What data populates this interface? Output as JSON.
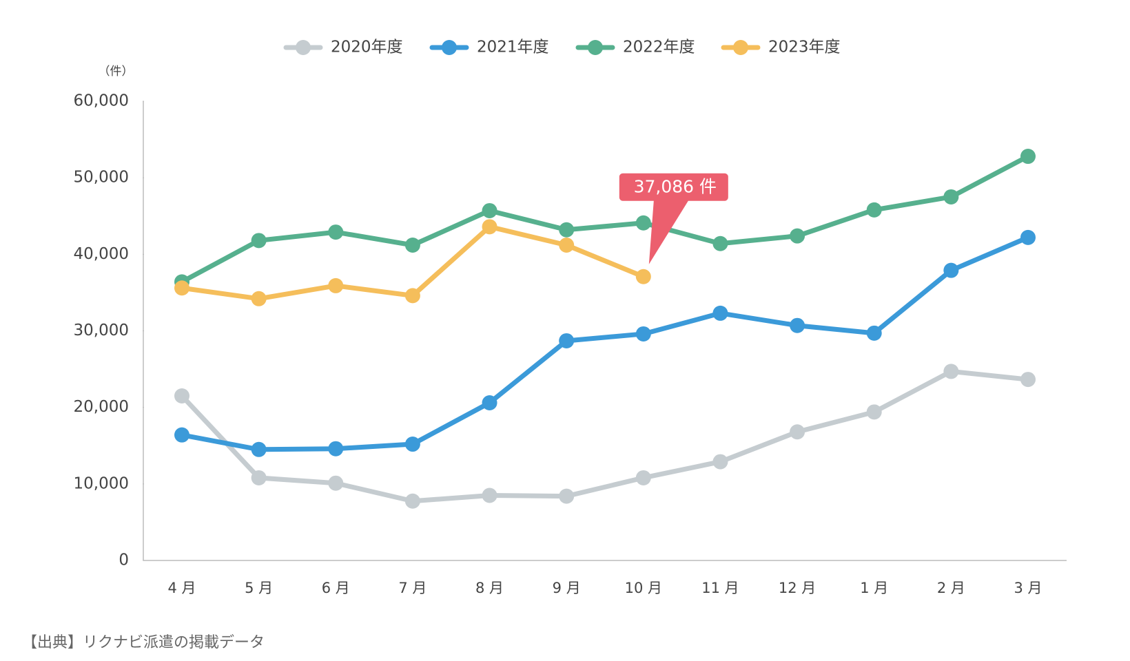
{
  "chart_data": {
    "type": "line",
    "y_label": "（件）",
    "source": "【出典】リクナビ派遣の掲載データ",
    "categories": [
      "4 月",
      "5 月",
      "6 月",
      "7 月",
      "8 月",
      "9 月",
      "10 月",
      "11 月",
      "12 月",
      "1 月",
      "2 月",
      "3 月"
    ],
    "series": [
      {
        "name": "2020年度",
        "color": "#c5ccd0",
        "values": [
          21500,
          10800,
          10100,
          7760,
          8500,
          8400,
          10800,
          12900,
          16800,
          19400,
          24700,
          23650
        ]
      },
      {
        "name": "2021年度",
        "color": "#3b9ad9",
        "values": [
          16400,
          14500,
          14600,
          15200,
          20600,
          28700,
          29600,
          32300,
          30700,
          29700,
          37900,
          42200
        ]
      },
      {
        "name": "2022年度",
        "color": "#56b08e",
        "values": [
          36400,
          41800,
          42900,
          41200,
          45700,
          43200,
          44100,
          41400,
          42400,
          45800,
          47500,
          52800
        ]
      },
      {
        "name": "2023年度",
        "color": "#f5be5b",
        "values": [
          35600,
          34200,
          35900,
          34600,
          43600,
          41200,
          37086,
          null,
          null,
          null,
          null,
          null
        ],
        "value_labels": [
          null,
          null,
          null,
          null,
          null,
          null,
          "37,086 件",
          null,
          null,
          null,
          null,
          null
        ]
      }
    ],
    "annotation_color": "#ec5f6e",
    "ylim": [
      0,
      60000
    ],
    "yticks": [
      0,
      {
        "value": 10000,
        "label": "10,000"
      },
      {
        "value": 20000,
        "label": "20,000"
      },
      {
        "value": 30000,
        "label": "30,000"
      },
      {
        "value": 40000,
        "label": "40,000"
      },
      {
        "value": 50000,
        "label": "50,000"
      },
      {
        "value": 60000,
        "label": "60,000"
      }
    ]
  }
}
